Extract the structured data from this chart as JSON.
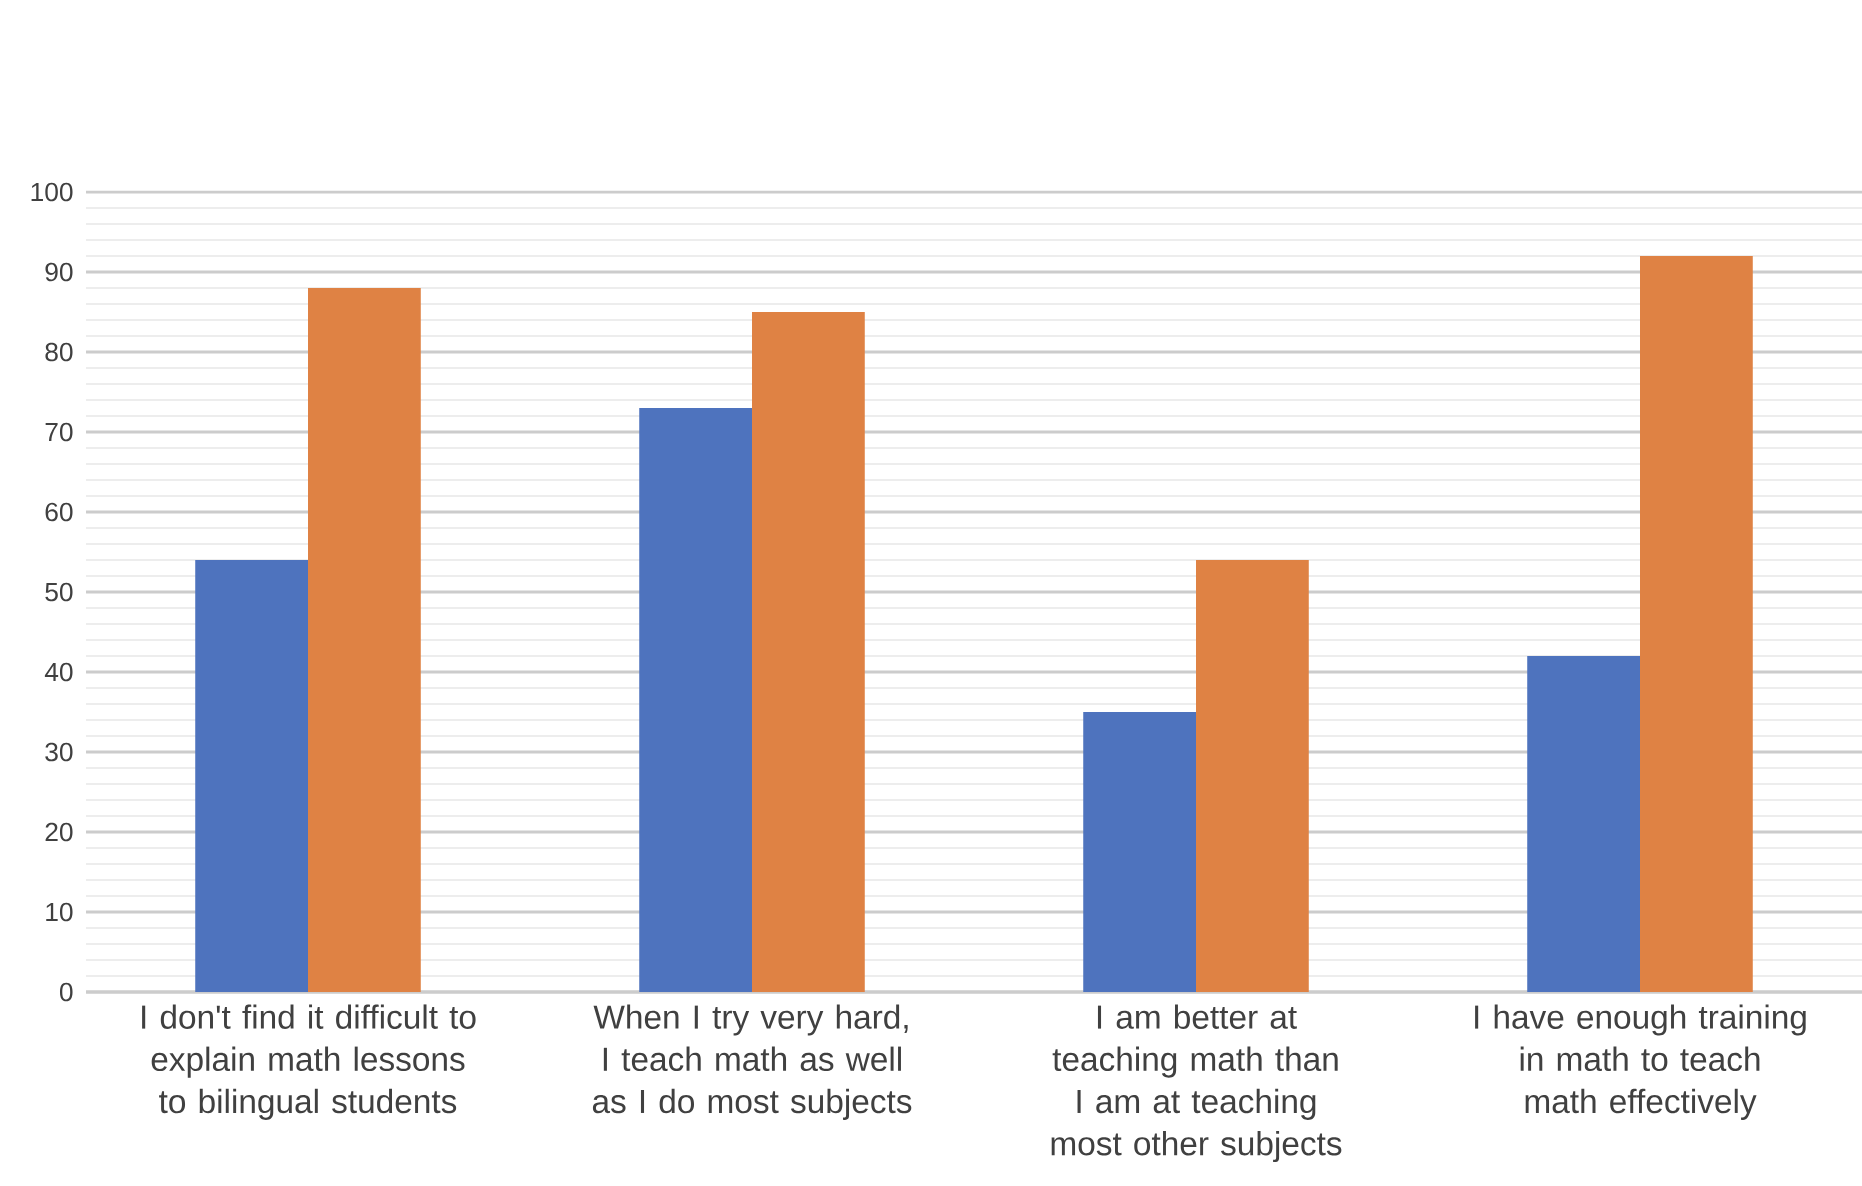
{
  "chart_data": {
    "type": "bar",
    "categories": [
      "I don't find it difficult to explain math lessons to bilingual students",
      "When I try very hard, I teach math as well as I do most subjects",
      "I am better at teaching math than I am at teaching most other subjects",
      "I have enough training in math to teach math effectively"
    ],
    "series": [
      {
        "color": "#4e73be",
        "values": [
          54,
          73,
          35,
          42
        ]
      },
      {
        "color": "#df8244",
        "values": [
          88,
          85,
          54,
          92
        ]
      }
    ],
    "ylim": [
      0,
      100
    ],
    "yticks": [
      0,
      10,
      20,
      30,
      40,
      50,
      60,
      70,
      80,
      90,
      100
    ],
    "grid": "y"
  }
}
